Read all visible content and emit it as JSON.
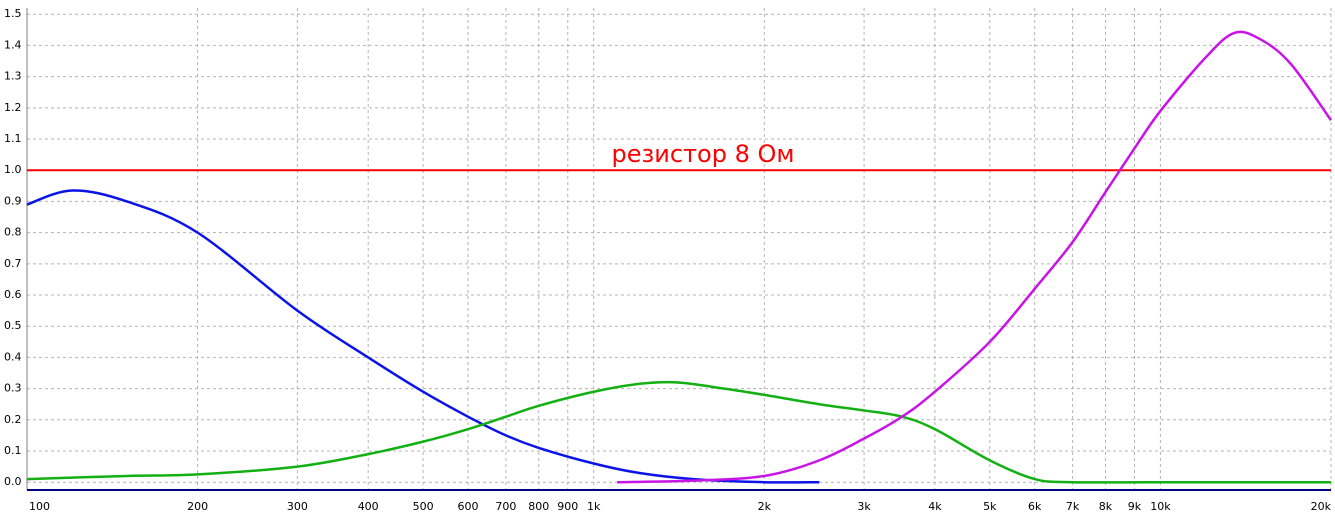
{
  "chart_data": {
    "type": "line",
    "xscale": "log",
    "grid": true,
    "xlim": [
      100,
      20000
    ],
    "ylim": [
      -0.025,
      1.52
    ],
    "xticks": [
      100,
      200,
      300,
      400,
      500,
      600,
      700,
      800,
      900,
      {
        "value": 1000,
        "label": "1k"
      },
      {
        "value": 2000,
        "label": "2k"
      },
      {
        "value": 3000,
        "label": "3k"
      },
      {
        "value": 4000,
        "label": "4k"
      },
      {
        "value": 5000,
        "label": "5k"
      },
      {
        "value": 6000,
        "label": "6k"
      },
      {
        "value": 7000,
        "label": "7k"
      },
      {
        "value": 8000,
        "label": "8k"
      },
      {
        "value": 9000,
        "label": "9k"
      },
      {
        "value": 10000,
        "label": "10k"
      },
      {
        "value": 20000,
        "label": "20k"
      }
    ],
    "yticks": [
      {
        "value": 0,
        "label": "0.0"
      },
      0.1,
      0.2,
      0.3,
      0.4,
      0.5,
      0.6,
      0.7,
      0.8,
      0.9,
      {
        "value": 1,
        "label": "1.0"
      },
      1.1,
      1.2,
      1.3,
      1.4,
      1.5
    ],
    "hline": {
      "value": 1,
      "label": "резистор 8 Ом",
      "color": "#ff0000"
    },
    "series": [
      {
        "color": "#0a14e6",
        "x": [
          100,
          120,
          150,
          200,
          300,
          400,
          500,
          600,
          700,
          800,
          1000,
          1200,
          1500,
          2000,
          2500
        ],
        "values": [
          0.89,
          0.935,
          0.9,
          0.8,
          0.55,
          0.4,
          0.29,
          0.21,
          0.15,
          0.11,
          0.06,
          0.03,
          0.01,
          0.0,
          0.0
        ]
      },
      {
        "color": "#12b012",
        "x": [
          100,
          150,
          200,
          300,
          400,
          500,
          600,
          700,
          800,
          1000,
          1200,
          1400,
          1700,
          2000,
          2500,
          3000,
          3500,
          4000,
          5000,
          6000,
          7000,
          10000,
          20000
        ],
        "values": [
          0.01,
          0.02,
          0.025,
          0.05,
          0.09,
          0.13,
          0.17,
          0.21,
          0.245,
          0.29,
          0.315,
          0.32,
          0.3,
          0.28,
          0.25,
          0.23,
          0.21,
          0.17,
          0.07,
          0.01,
          0.0,
          0.0,
          0.0
        ]
      },
      {
        "color": "#c814e6",
        "x": [
          1100,
          1500,
          2000,
          2500,
          3000,
          3500,
          4000,
          5000,
          6000,
          7000,
          8000,
          9000,
          10000,
          12000,
          13500,
          15000,
          17000,
          20000
        ],
        "values": [
          0.0,
          0.005,
          0.02,
          0.07,
          0.14,
          0.21,
          0.29,
          0.45,
          0.62,
          0.77,
          0.93,
          1.07,
          1.19,
          1.36,
          1.44,
          1.42,
          1.34,
          1.16
        ]
      }
    ]
  }
}
